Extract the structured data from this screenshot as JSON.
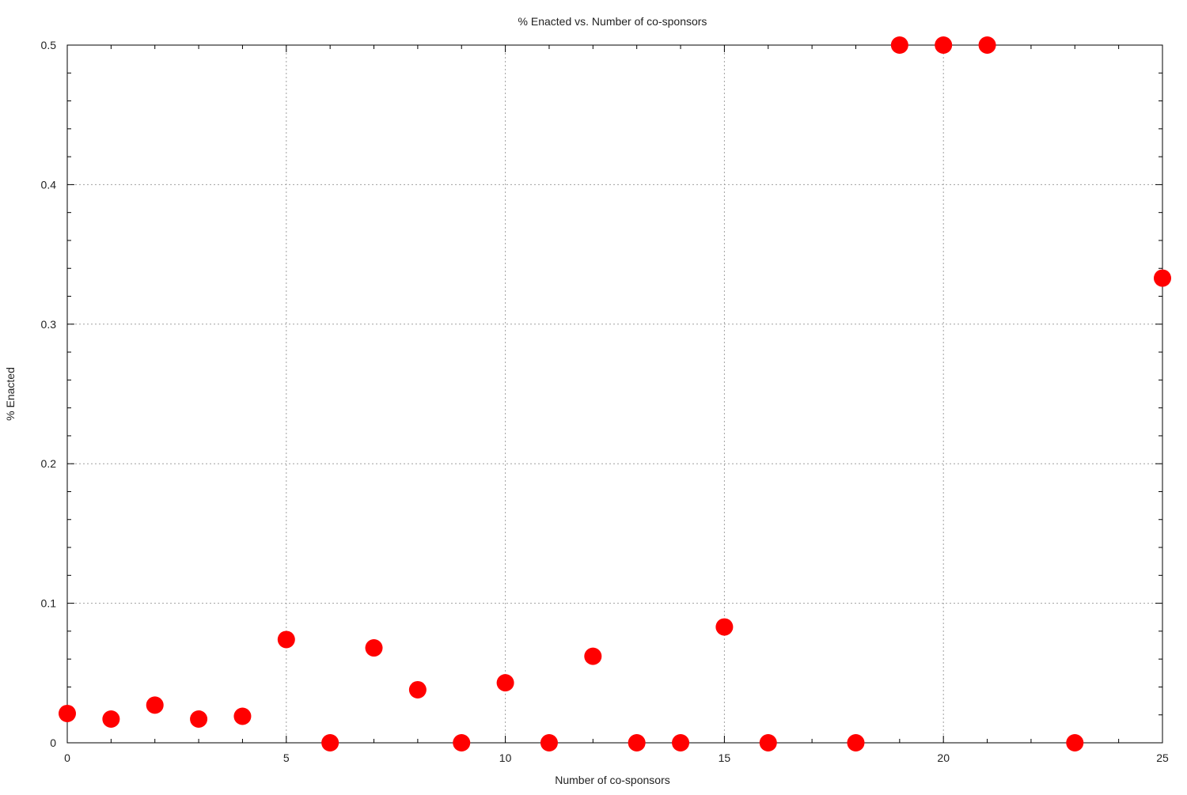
{
  "chart_data": {
    "type": "scatter",
    "title": "% Enacted vs. Number of co-sponsors",
    "xlabel": "Number of co-sponsors",
    "ylabel": "% Enacted",
    "xlim": [
      0,
      25
    ],
    "ylim": [
      0,
      0.5
    ],
    "xticks": [
      0,
      5,
      10,
      15,
      20,
      25
    ],
    "yticks": [
      0,
      0.1,
      0.2,
      0.3,
      0.4,
      0.5
    ],
    "xtick_labels": [
      "0",
      "5",
      "10",
      "15",
      "20",
      "25"
    ],
    "ytick_labels": [
      "0",
      "0.1",
      "0.2",
      "0.3",
      "0.4",
      "0.5"
    ],
    "grid": true,
    "marker_color": "#ff0000",
    "points": [
      {
        "x": 0,
        "y": 0.021
      },
      {
        "x": 1,
        "y": 0.017
      },
      {
        "x": 2,
        "y": 0.027
      },
      {
        "x": 3,
        "y": 0.017
      },
      {
        "x": 4,
        "y": 0.019
      },
      {
        "x": 5,
        "y": 0.074
      },
      {
        "x": 6,
        "y": 0.0
      },
      {
        "x": 7,
        "y": 0.068
      },
      {
        "x": 8,
        "y": 0.038
      },
      {
        "x": 9,
        "y": 0.0
      },
      {
        "x": 10,
        "y": 0.043
      },
      {
        "x": 11,
        "y": 0.0
      },
      {
        "x": 12,
        "y": 0.062
      },
      {
        "x": 13,
        "y": 0.0
      },
      {
        "x": 14,
        "y": 0.0
      },
      {
        "x": 15,
        "y": 0.083
      },
      {
        "x": 16,
        "y": 0.0
      },
      {
        "x": 18,
        "y": 0.0
      },
      {
        "x": 19,
        "y": 0.5
      },
      {
        "x": 20,
        "y": 0.5
      },
      {
        "x": 21,
        "y": 0.5
      },
      {
        "x": 23,
        "y": 0.0
      },
      {
        "x": 25,
        "y": 0.333
      }
    ]
  }
}
